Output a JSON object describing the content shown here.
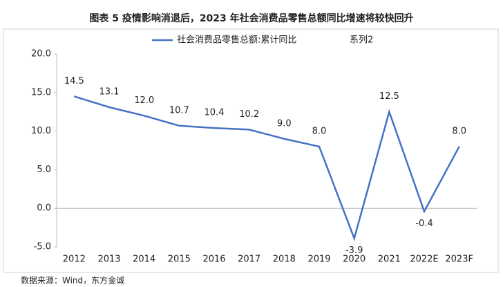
{
  "chart_data": {
    "type": "line",
    "title": "图表 5  疫情影响消退后，2023 年社会消费品零售总额同比增速将较快回升",
    "source": "数据来源：Wind，东方金诚",
    "categories": [
      "2012",
      "2013",
      "2014",
      "2015",
      "2016",
      "2017",
      "2018",
      "2019",
      "2020",
      "2021",
      "2022E",
      "2023F"
    ],
    "series": [
      {
        "name": "社会消费品零售总额:累计同比",
        "color": "#4472c4",
        "values": [
          14.5,
          13.1,
          12.0,
          10.7,
          10.4,
          10.2,
          9.0,
          8.0,
          -3.9,
          12.5,
          -0.4,
          8.0
        ],
        "value_labels": [
          "14.5",
          "13.1",
          "12.0",
          "10.7",
          "10.4",
          "10.2",
          "9.0",
          "8.0",
          "-3.9",
          "12.5",
          "-0.4",
          "8.0"
        ]
      },
      {
        "name": "系列2",
        "color": "#ed7d31",
        "values": [
          null,
          null,
          null,
          null,
          null,
          null,
          null,
          null,
          null,
          null,
          null,
          null
        ]
      }
    ],
    "ylim": [
      -5,
      20
    ],
    "yticks": [
      {
        "value": -5,
        "label": "-5.0"
      },
      {
        "value": 0,
        "label": "0.0"
      },
      {
        "value": 5,
        "label": "5.0"
      },
      {
        "value": 10,
        "label": "10.0"
      },
      {
        "value": 15,
        "label": "15.0"
      },
      {
        "value": 20,
        "label": "20.0"
      }
    ],
    "legend": "top"
  }
}
